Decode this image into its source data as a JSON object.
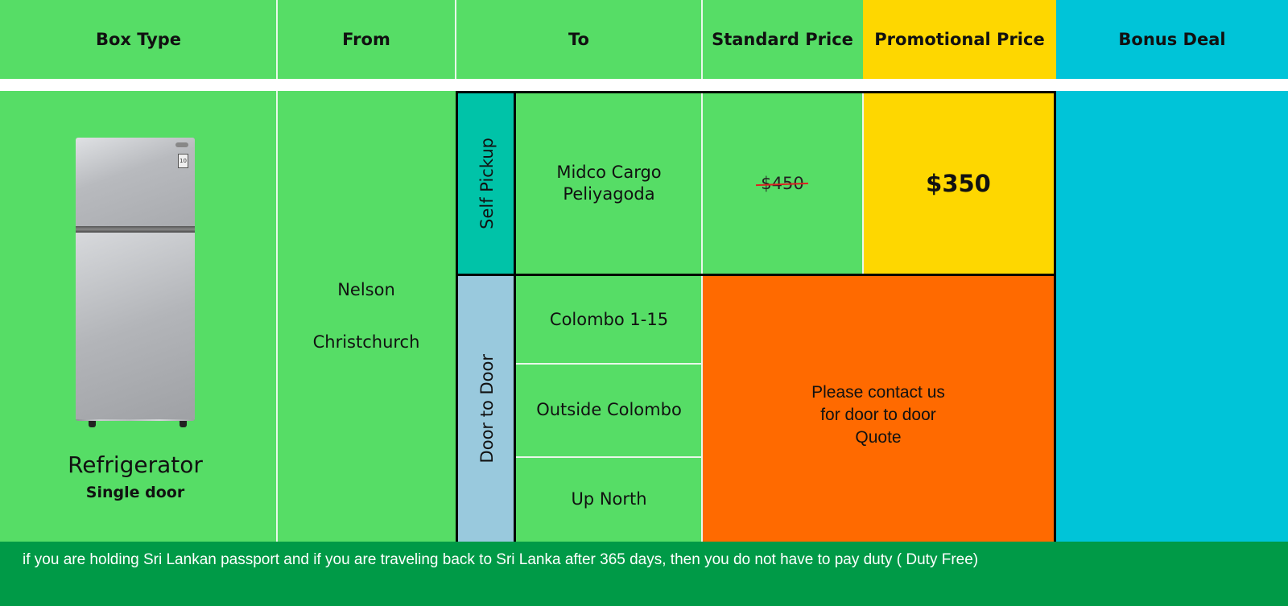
{
  "header": {
    "box_type": "Box Type",
    "from": "From",
    "to": "To",
    "standard_price": "Standard Price",
    "promotional_price": "Promotional Price",
    "bonus_deal": "Bonus Deal"
  },
  "product": {
    "name": "Refrigerator",
    "variant": "Single door",
    "image_icon": "refrigerator-image"
  },
  "from": {
    "cities": [
      "Nelson",
      "Christchurch"
    ]
  },
  "self_pickup": {
    "label": "Self Pickup",
    "destination_line1": "Midco Cargo",
    "destination_line2": "Peliyagoda",
    "standard_price": "$450",
    "promotional_price": "$350"
  },
  "door_to_door": {
    "label": "Door to Door",
    "destinations": [
      "Colombo 1-15",
      "Outside Colombo",
      "Up North"
    ],
    "contact_line1": "Please contact us",
    "contact_line2": "for door to door",
    "contact_line3": "Quote"
  },
  "footer": {
    "note": "if you are holding Sri Lankan passport and if you are traveling back to Sri Lanka after 365 days, then you do not have to pay duty ( Duty Free)"
  },
  "colors": {
    "green": "#56dd66",
    "yellow": "#fed700",
    "cyan": "#00c4d8",
    "teal": "#00c3a8",
    "light_blue": "#99c9dd",
    "orange": "#ff6a00",
    "dark_green": "#009a47"
  }
}
